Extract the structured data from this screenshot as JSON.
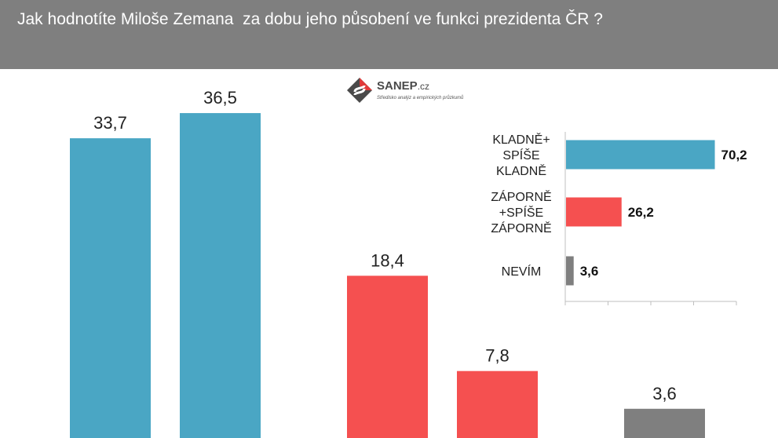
{
  "header": {
    "title": "Jak hodnotíte Miloše Zemana  za dobu jeho působení ve funkci prezidenta ČR ?"
  },
  "logo": {
    "name": "SANEP",
    "suffix": ".cz",
    "subtitle": "Středisko analýz a empirických průzkumů"
  },
  "colors": {
    "positive": "#4aa6c4",
    "negative": "#f55050",
    "neutral": "#7f7f7f",
    "header": "#7f7f7f"
  },
  "chart_data": [
    {
      "type": "bar",
      "categories": [
        "",
        "",
        "",
        "",
        ""
      ],
      "values": [
        33.7,
        36.5,
        18.4,
        7.8,
        3.6
      ],
      "value_labels": [
        "33,7",
        "36,5",
        "18,4",
        "7,8",
        "3,6"
      ],
      "colors": [
        "#4aa6c4",
        "#4aa6c4",
        "#f55050",
        "#f55050",
        "#7f7f7f"
      ],
      "title": "",
      "xlabel": "",
      "ylabel": "",
      "ylim": [
        0,
        40
      ],
      "grid": false,
      "legend": "none"
    },
    {
      "type": "bar",
      "orientation": "horizontal",
      "categories": [
        "KLADNĚ+ SPÍŠE KLADNĚ",
        "ZÁPORNĚ +SPÍŠE ZÁPORNĚ",
        "NEVÍM"
      ],
      "category_lines": [
        [
          "KLADNĚ+",
          "SPÍŠE",
          "KLADNĚ"
        ],
        [
          "ZÁPORNĚ",
          "+SPÍŠE",
          "ZÁPORNĚ"
        ],
        [
          "NEVÍM"
        ]
      ],
      "values": [
        70.2,
        26.2,
        3.6
      ],
      "value_labels": [
        "70,2",
        "26,2",
        "3,6"
      ],
      "colors": [
        "#4aa6c4",
        "#f55050",
        "#7f7f7f"
      ],
      "title": "",
      "xlabel": "",
      "ylabel": "",
      "xlim": [
        0,
        80
      ],
      "grid": false,
      "legend": "none"
    }
  ]
}
